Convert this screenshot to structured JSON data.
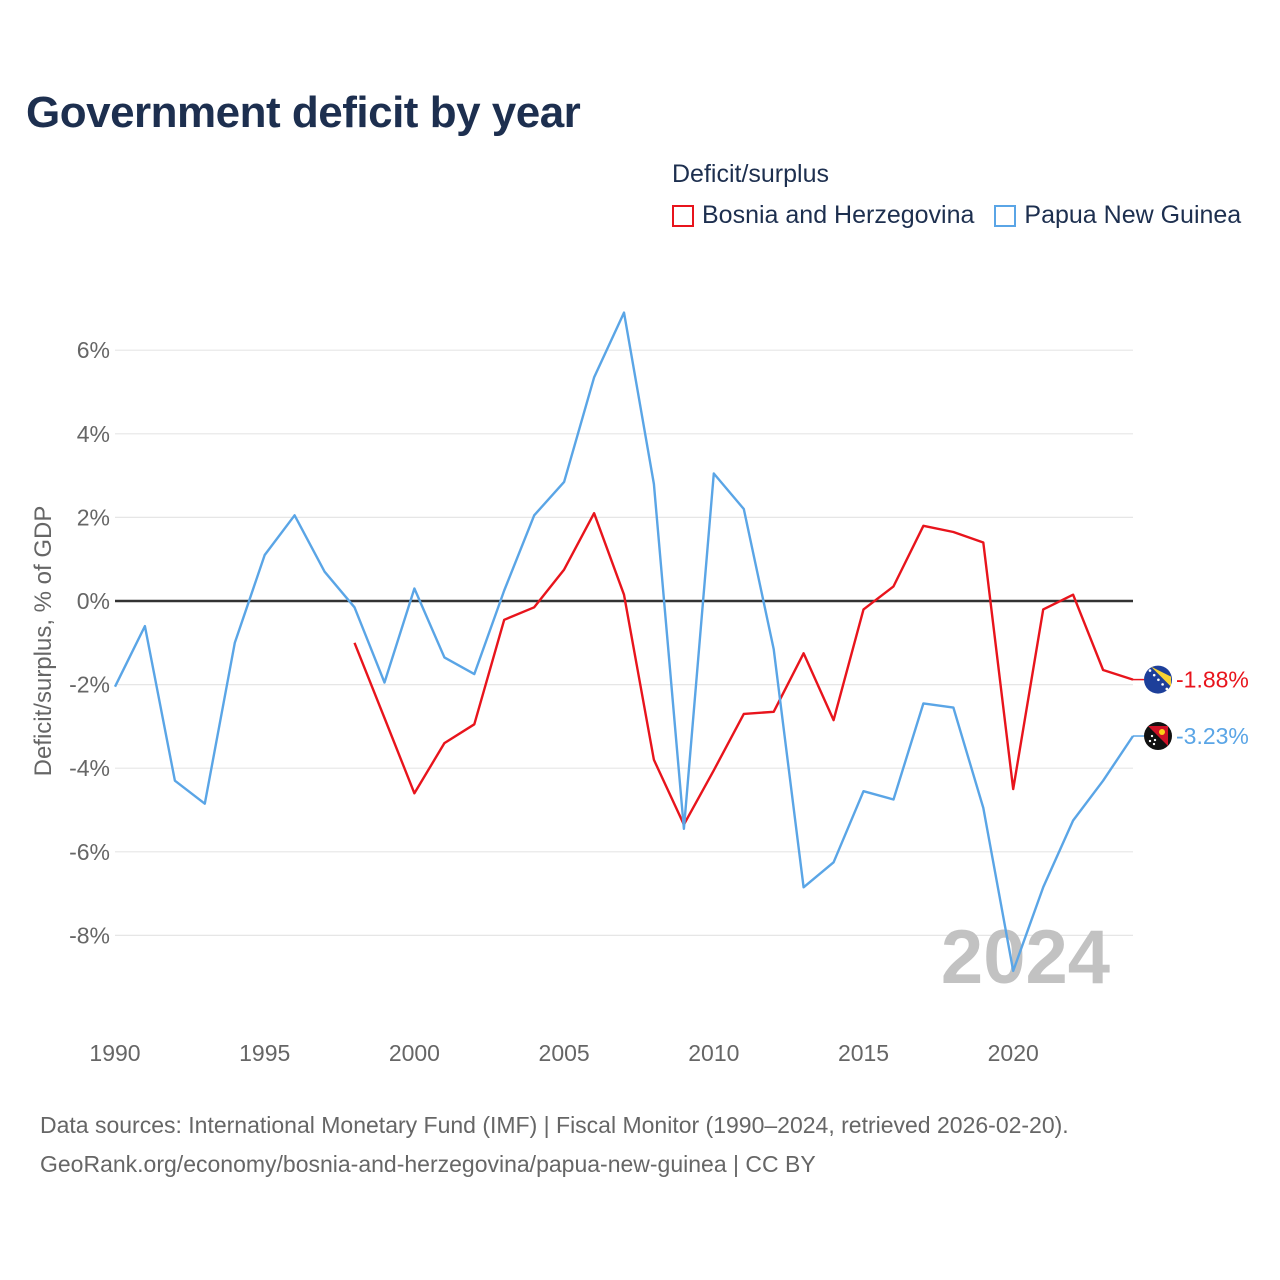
{
  "title": "Government deficit by year",
  "legend": {
    "title": "Deficit/surplus",
    "items": [
      {
        "label": "Bosnia and Herzegovina",
        "color": "#e8141c"
      },
      {
        "label": "Papua New Guinea",
        "color": "#5aa5e6"
      }
    ]
  },
  "year_watermark": "2024",
  "sources": {
    "line1": "Data sources: International Monetary Fund (IMF) | Fiscal Monitor (1990–2024, retrieved 2026-02-20).",
    "line2": "GeoRank.org/economy/bosnia-and-herzegovina/papua-new-guinea | CC BY"
  },
  "chart_data": {
    "type": "line",
    "title": "Government deficit by year",
    "xlabel": "",
    "ylabel": "Deficit/surplus, % of GDP",
    "xlim": [
      1990,
      2024
    ],
    "ylim": [
      -10,
      7
    ],
    "x_ticks": [
      1990,
      1995,
      2000,
      2005,
      2010,
      2015,
      2020
    ],
    "y_ticks": [
      -8,
      -6,
      -4,
      -2,
      0,
      2,
      4,
      6
    ],
    "x_tick_labels": [
      "1990",
      "1995",
      "2000",
      "2005",
      "2010",
      "2015",
      "2020"
    ],
    "y_tick_labels": [
      "-8%",
      "-6%",
      "-4%",
      "-2%",
      "0%",
      "2%",
      "4%",
      "6%"
    ],
    "grid": true,
    "legend_position": "top-right",
    "series": [
      {
        "name": "Bosnia and Herzegovina",
        "color": "#e8141c",
        "end_label": "-1.88%",
        "x": [
          1998,
          1999,
          2000,
          2001,
          2002,
          2003,
          2004,
          2005,
          2006,
          2007,
          2008,
          2009,
          2010,
          2011,
          2012,
          2013,
          2014,
          2015,
          2016,
          2017,
          2018,
          2019,
          2020,
          2021,
          2022,
          2023,
          2024
        ],
        "values": [
          -1.0,
          -2.8,
          -4.6,
          -3.4,
          -2.95,
          -0.45,
          -0.15,
          0.75,
          2.1,
          0.15,
          -3.8,
          -5.35,
          -4.05,
          -2.7,
          -2.65,
          -1.25,
          -2.85,
          -0.2,
          0.35,
          1.8,
          1.65,
          1.4,
          -4.5,
          -0.2,
          0.15,
          -1.65,
          -1.88
        ]
      },
      {
        "name": "Papua New Guinea",
        "color": "#5aa5e6",
        "end_label": "-3.23%",
        "x": [
          1990,
          1991,
          1992,
          1993,
          1994,
          1995,
          1996,
          1997,
          1998,
          1999,
          2000,
          2001,
          2002,
          2003,
          2004,
          2005,
          2006,
          2007,
          2008,
          2009,
          2010,
          2011,
          2012,
          2013,
          2014,
          2015,
          2016,
          2017,
          2018,
          2019,
          2020,
          2021,
          2022,
          2023,
          2024
        ],
        "values": [
          -2.05,
          -0.6,
          -4.3,
          -4.85,
          -1.0,
          1.1,
          2.05,
          0.7,
          -0.15,
          -1.95,
          0.3,
          -1.35,
          -1.75,
          0.25,
          2.05,
          2.85,
          5.35,
          6.9,
          2.8,
          -5.45,
          3.05,
          2.2,
          -1.15,
          -6.85,
          -6.25,
          -4.55,
          -4.75,
          -2.45,
          -2.55,
          -4.95,
          -8.85,
          -6.85,
          -5.25,
          -4.3,
          -3.23
        ]
      }
    ]
  }
}
